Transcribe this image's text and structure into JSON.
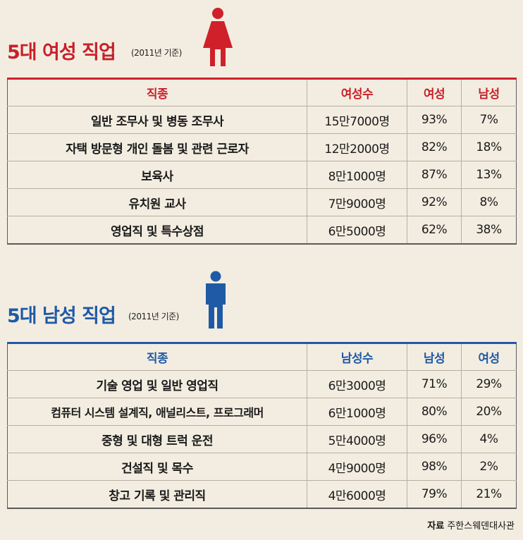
{
  "female": {
    "title": "5대 여성 직업",
    "subtitle": "(2011년 기준)",
    "accent": "#d0202a",
    "icon": "female-figure-icon",
    "headers": [
      "직종",
      "여성수",
      "여성",
      "남성"
    ],
    "rows": [
      [
        "일반 조무사 및 병동 조무사",
        "15만7000명",
        "93%",
        "7%"
      ],
      [
        "자택 방문형 개인 돌봄 및 관련 근로자",
        "12만2000명",
        "82%",
        "18%"
      ],
      [
        "보육사",
        "8만1000명",
        "87%",
        "13%"
      ],
      [
        "유치원 교사",
        "7만9000명",
        "92%",
        "8%"
      ],
      [
        "영업직 및 특수상점",
        "6만5000명",
        "62%",
        "38%"
      ]
    ]
  },
  "male": {
    "title": "5대 남성 직업",
    "subtitle": "(2011년 기준)",
    "accent": "#1f5aa6",
    "icon": "male-figure-icon",
    "headers": [
      "직종",
      "남성수",
      "남성",
      "여성"
    ],
    "rows": [
      [
        "기술 영업 및 일반 영업직",
        "6만3000명",
        "71%",
        "29%"
      ],
      [
        "컴퓨터 시스템 설계직, 애널리스트, 프로그래머",
        "6만1000명",
        "80%",
        "20%"
      ],
      [
        "중형 및 대형 트럭 운전",
        "5만4000명",
        "96%",
        "4%"
      ],
      [
        "건설직 및 목수",
        "4만9000명",
        "98%",
        "2%"
      ],
      [
        "창고 기록 및 관리직",
        "4만6000명",
        "79%",
        "21%"
      ]
    ]
  },
  "source": {
    "label": "자료",
    "text": "주한스웨덴대사관"
  }
}
